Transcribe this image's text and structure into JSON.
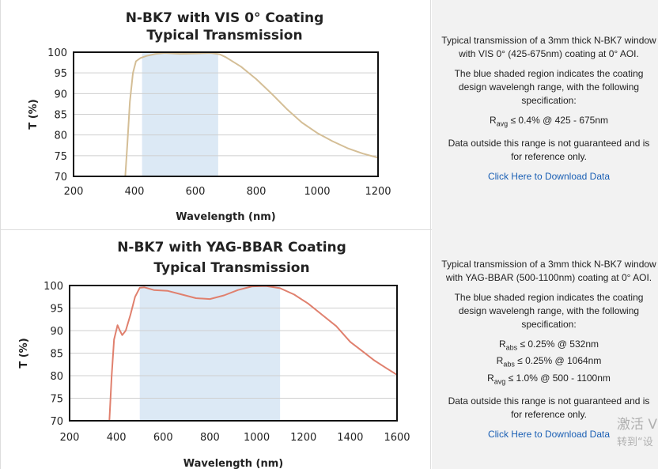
{
  "chart_data": [
    {
      "type": "line",
      "title": "N-BK7 with VIS 0° Coating",
      "subtitle": "Typical Transmission",
      "xlabel": "Wavelength (nm)",
      "ylabel": "T (%)",
      "xlim": [
        200,
        1200
      ],
      "ylim": [
        70,
        100
      ],
      "x_ticks": [
        200,
        400,
        600,
        800,
        1000,
        1200
      ],
      "y_ticks": [
        70,
        75,
        80,
        85,
        90,
        95,
        100
      ],
      "grid": true,
      "line_color": "#d4be96",
      "shade_color": "#dce9f5",
      "shaded_region": [
        425,
        675
      ],
      "series": [
        {
          "x": [
            370,
            377,
            385,
            395,
            405,
            420,
            440,
            470,
            500,
            550,
            600,
            650,
            680,
            700,
            750,
            800,
            850,
            900,
            950,
            1000,
            1050,
            1100,
            1150,
            1200
          ],
          "y": [
            70,
            78,
            88,
            95,
            97.8,
            98.6,
            99.1,
            99.6,
            99.8,
            99.6,
            99.7,
            99.8,
            99.5,
            98.8,
            96.5,
            93.5,
            90,
            86.3,
            83,
            80.5,
            78.5,
            76.8,
            75.5,
            74.5
          ]
        }
      ]
    },
    {
      "type": "line",
      "title": "N-BK7 with YAG-BBAR Coating",
      "subtitle": "Typical Transmission",
      "xlabel": "Wavelength (nm)",
      "ylabel": "T (%)",
      "xlim": [
        200,
        1600
      ],
      "ylim": [
        70,
        100
      ],
      "x_ticks": [
        200,
        400,
        600,
        800,
        1000,
        1200,
        1400,
        1600
      ],
      "y_ticks": [
        70,
        75,
        80,
        85,
        90,
        95,
        100
      ],
      "grid": true,
      "line_color": "#e0806e",
      "shade_color": "#dce9f5",
      "shaded_region": [
        500,
        1100
      ],
      "series": [
        {
          "x": [
            370,
            380,
            390,
            405,
            415,
            425,
            440,
            460,
            480,
            500,
            520,
            560,
            620,
            680,
            740,
            800,
            860,
            920,
            980,
            1040,
            1100,
            1160,
            1220,
            1280,
            1340,
            1400,
            1450,
            1500,
            1550,
            1600
          ],
          "y": [
            70,
            80,
            88,
            91.2,
            90,
            89,
            90,
            93.5,
            97.5,
            99.5,
            99.6,
            99,
            98.8,
            98,
            97.2,
            97,
            97.8,
            99,
            99.8,
            99.9,
            99.4,
            98,
            96,
            93.5,
            91,
            87.5,
            85.5,
            83.5,
            81.8,
            80.2
          ]
        }
      ]
    }
  ],
  "panels": [
    {
      "description": "Typical transmission of a 3mm thick N-BK7 window with VIS 0° (425-675nm) coating at 0° AOI.",
      "shaded_note": "The blue shaded region indicates the coating design wavelengh range, with the following specification:",
      "specs": [
        {
          "symbol": "R",
          "sub": "avg",
          "text": " ≤ 0.4% @ 425 - 675nm"
        }
      ],
      "disclaimer": "Data outside this range is not guaranteed and is for reference only.",
      "link": "Click Here to Download Data"
    },
    {
      "description": "Typical transmission of a 3mm thick N-BK7 window with YAG-BBAR (500-1100nm) coating at 0° AOI.",
      "shaded_note": "The blue shaded region indicates the coating design wavelengh range, with the following specification:",
      "specs": [
        {
          "symbol": "R",
          "sub": "abs",
          "text": " ≤ 0.25% @ 532nm"
        },
        {
          "symbol": "R",
          "sub": "abs",
          "text": " ≤ 0.25% @ 1064nm"
        },
        {
          "symbol": "R",
          "sub": "avg",
          "text": " ≤ 1.0% @ 500 - 1100nm"
        }
      ],
      "disclaimer": "Data outside this range is not guaranteed and is for reference only.",
      "link": "Click Here to Download Data"
    }
  ],
  "watermark": {
    "line1": "激活 V",
    "line2": "转到“设"
  }
}
